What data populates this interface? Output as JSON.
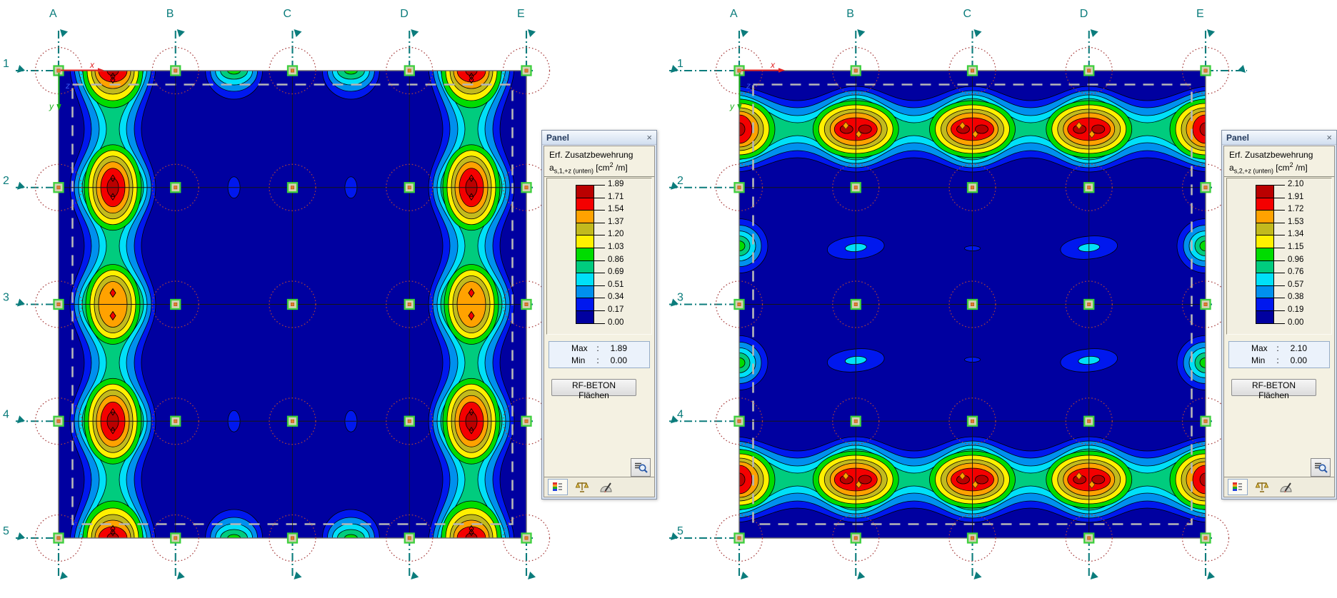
{
  "plots": {
    "left": {
      "columns": [
        "A",
        "B",
        "C",
        "D",
        "E"
      ],
      "rows": [
        "1",
        "2",
        "3",
        "4",
        "5"
      ],
      "origin": {
        "x": "x",
        "y": "y",
        "z": "z"
      }
    },
    "right": {
      "columns": [
        "A",
        "B",
        "C",
        "D",
        "E"
      ],
      "rows": [
        "1",
        "2",
        "3",
        "4",
        "5"
      ],
      "origin": {
        "x": "x",
        "y": "y",
        "z": "z"
      }
    }
  },
  "legend_colors": [
    "#BA0000",
    "#F40000",
    "#FFA200",
    "#C2BA1E",
    "#FFF000",
    "#00DC00",
    "#00CC7E",
    "#00E0F8",
    "#0090EE",
    "#0018EE",
    "#0000A0"
  ],
  "panels": {
    "left": {
      "title": "Panel",
      "close_glyph": "×",
      "result_label": "Erf. Zusatzbewehrung",
      "symbol_base": "a",
      "symbol_sub": "s,1,+z (unten)",
      "unit_pre": " [cm",
      "unit_sup": "2",
      "unit_post": " /m]",
      "scale_values": [
        "1.89",
        "1.71",
        "1.54",
        "1.37",
        "1.20",
        "1.03",
        "0.86",
        "0.69",
        "0.51",
        "0.34",
        "0.17",
        "0.00"
      ],
      "max_label": "Max",
      "max_sep": ":",
      "max_value": "1.89",
      "min_label": "Min",
      "min_sep": ":",
      "min_value": "0.00",
      "button_label": "RF-BETON Flächen"
    },
    "right": {
      "title": "Panel",
      "close_glyph": "×",
      "result_label": "Erf. Zusatzbewehrung",
      "symbol_base": "a",
      "symbol_sub": "s,2,+z (unten)",
      "unit_pre": " [cm",
      "unit_sup": "2",
      "unit_post": " /m]",
      "scale_values": [
        "2.10",
        "1.91",
        "1.72",
        "1.53",
        "1.34",
        "1.15",
        "0.96",
        "0.76",
        "0.57",
        "0.38",
        "0.19",
        "0.00"
      ],
      "max_label": "Max",
      "max_sep": ":",
      "max_value": "2.10",
      "min_label": "Min",
      "min_sep": ":",
      "min_value": "0.00",
      "button_label": "RF-BETON Flächen"
    }
  },
  "colors": {
    "background": "#FFFFFF",
    "slab": "#0000A0",
    "grid_axis": "#0B7C7C",
    "node_border": "#3ED03E",
    "column_circle": "#A84040",
    "inset_dash": "#B6B6B6"
  }
}
